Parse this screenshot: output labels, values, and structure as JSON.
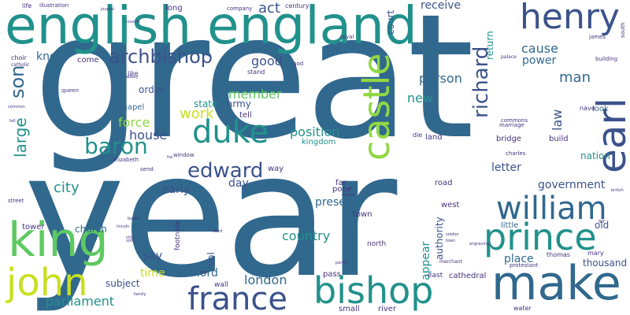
{
  "words": {
    "great": "great",
    "year": "year",
    "english": "english",
    "england": "england",
    "henry": "henry",
    "king": "king",
    "john": "john",
    "make": "make",
    "prince": "prince",
    "bishop": "bishop",
    "france": "france",
    "duke": "duke",
    "earl": "earl",
    "william": "william",
    "castle": "castle",
    "archbishop": "archbishop",
    "edward": "edward",
    "baron": "baron",
    "son": "son",
    "richard": "richard",
    "parliament": "parliament",
    "country": "country",
    "london": "london",
    "government": "government",
    "city": "city",
    "work": "work",
    "man": "man",
    "cause": "cause",
    "power": "power",
    "person": "person",
    "member": "member",
    "position": "position",
    "house": "house",
    "force": "force",
    "large": "large",
    "know": "know",
    "good": "good",
    "new": "new",
    "act": "act",
    "receive": "receive",
    "law": "law",
    "place": "place",
    "thousand": "thousand",
    "early": "early",
    "day": "day",
    "say": "say",
    "lord": "lord",
    "time": "time",
    "subject": "subject",
    "church": "church",
    "present": "present",
    "letter": "letter",
    "order": "order",
    "army": "army",
    "state": "state",
    "nation": "nation",
    "old": "old",
    "appear": "appear",
    "authority": "authority",
    "return": "return",
    "court": "court",
    "long": "long",
    "come": "come",
    "tower": "tower",
    "chapel": "chapel",
    "tell": "tell",
    "kingdom": "kingdom",
    "vol": "vol",
    "west": "west",
    "road": "road",
    "way": "way",
    "far": "far",
    "pope": "pope",
    "town": "town",
    "pass": "pass",
    "small": "small",
    "river": "river",
    "east": "east",
    "cathedral": "cathedral",
    "north": "north",
    "wall": "wall",
    "little": "little",
    "thomas": "thomas",
    "mary": "mary",
    "look": "look",
    "nave": "nave",
    "build": "build",
    "bridge": "bridge",
    "land": "land",
    "die": "die",
    "marriage": "marriage",
    "commons": "commons",
    "charles": "charles",
    "water": "water",
    "merchant": "merchant",
    "protestant": "protestant",
    "footnote": "footnote",
    "illustration": "illustration",
    "company": "company",
    "century": "century",
    "royal": "royal",
    "choir": "choir",
    "catholic": "catholic",
    "stand": "stand",
    "like": "like",
    "queen": "queen",
    "window": "window",
    "elizabeth": "elizabeth",
    "send": "send",
    "street": "street",
    "james": "james",
    "south": "south",
    "building": "building",
    "palace": "palace",
    "god": "god",
    "life": "life",
    "journal": "journal",
    "council": "council",
    "abbey": "abbey",
    "fall": "fall",
    "common": "common",
    "sir": "sir",
    "british": "british",
    "soldier": "soldier",
    "lincoln": "lincoln",
    "engraving": "engraving",
    "ward": "ward",
    "fox": "fox",
    "battle": "battle",
    "oxford": "oxford",
    "parish": "parish",
    "family": "family",
    "ship": "ship",
    "son2": "son",
    "war": "war",
    "town2": "town"
  },
  "palette": {
    "navy": "#3b528b",
    "blue": "#31688e",
    "steel": "#2c728e",
    "teal": "#21918c",
    "green": "#27ad81",
    "lime": "#5ec962",
    "yellowgreen": "#90d743",
    "yellow": "#c8e020",
    "purple": "#443983",
    "deep": "#440154",
    "indigo": "#46327e"
  }
}
